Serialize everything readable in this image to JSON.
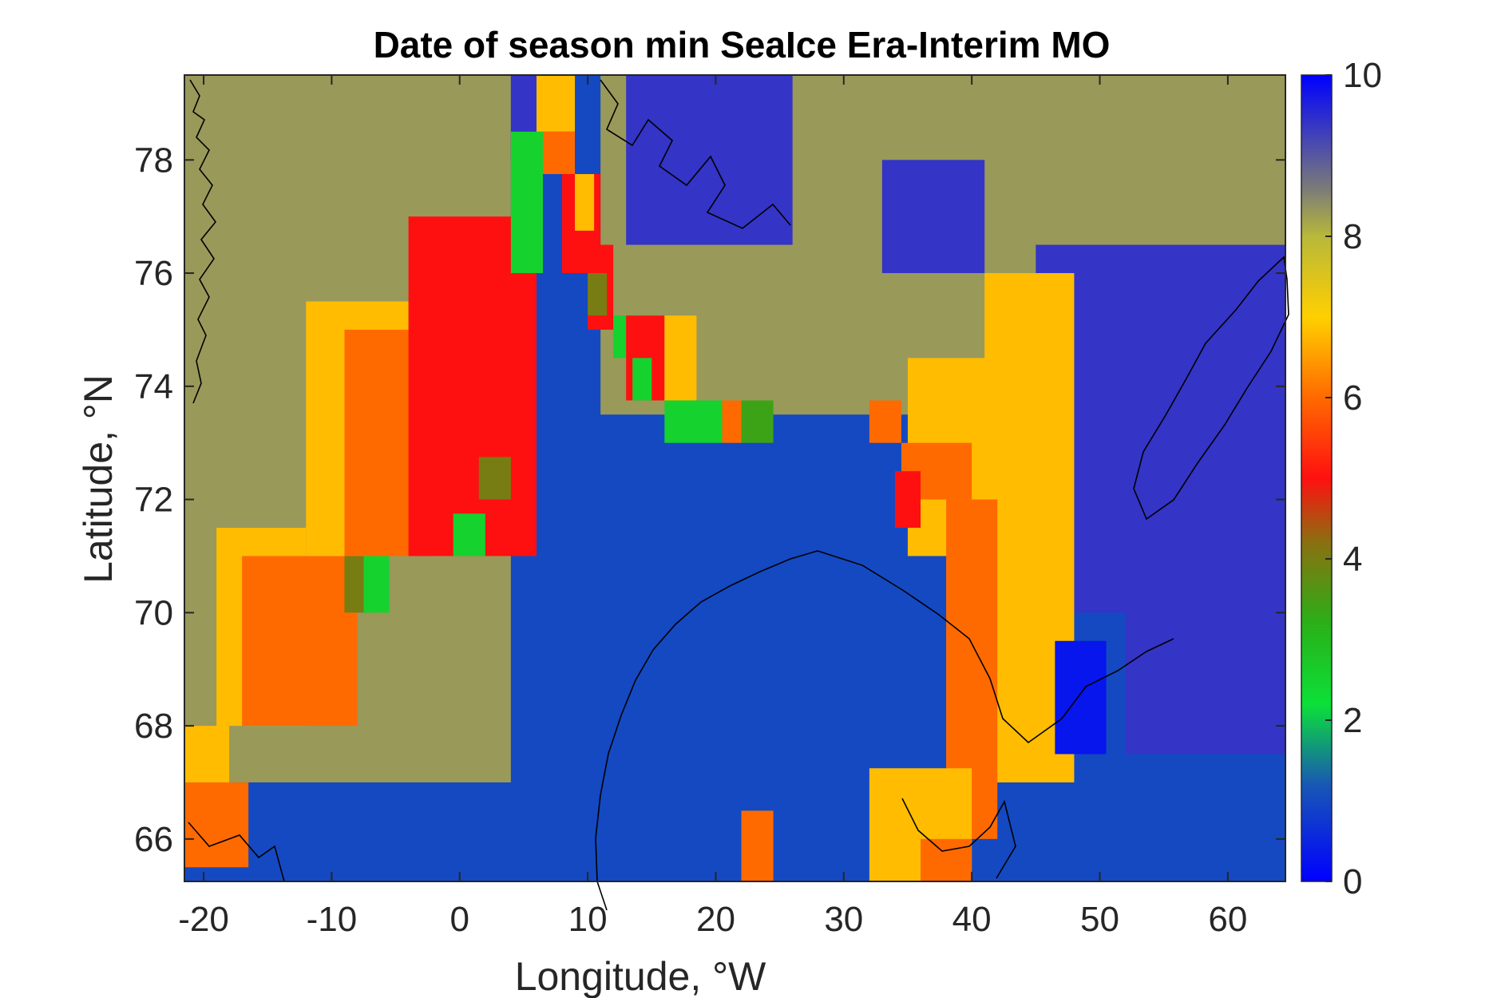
{
  "chart_data": {
    "type": "heatmap",
    "title": "Date of season min SeaIce Era-Interim MO",
    "xlabel": "Longitude, °W",
    "ylabel": "Latitude, °N",
    "xlim": [
      -21.5,
      64.5
    ],
    "ylim": [
      65.25,
      79.5
    ],
    "x_ticks": [
      -20,
      -10,
      0,
      10,
      20,
      30,
      40,
      50,
      60
    ],
    "x_tick_labels": [
      "-20",
      "-10",
      "0",
      "10",
      "20",
      "30",
      "40",
      "50",
      "60"
    ],
    "y_ticks": [
      66,
      68,
      70,
      72,
      74,
      76,
      78
    ],
    "y_tick_labels": [
      "66",
      "68",
      "70",
      "72",
      "74",
      "76",
      "78"
    ],
    "colorbar": {
      "range": [
        0,
        10
      ],
      "ticks": [
        0,
        2,
        4,
        6,
        8,
        10
      ],
      "tick_labels": [
        "0",
        "2",
        "4",
        "6",
        "8",
        "10"
      ],
      "colormap": "jet-like"
    },
    "colormap": {
      "values": [
        0,
        1.2,
        2.2,
        3.2,
        4.2,
        5,
        6,
        7,
        8,
        8.6,
        10
      ],
      "colors": [
        "#0000ff",
        "#1858b4",
        "#0ce038",
        "#2ab018",
        "#8a7010",
        "#ff1010",
        "#ff6a00",
        "#ffd000",
        "#b8b83a",
        "#7a7a7a",
        "#0000ff"
      ]
    },
    "grid_resolution": "1.5° lon × 0.75° lat",
    "regions": [
      {
        "value": 1.0,
        "lon": [
          -21.5,
          64.5
        ],
        "lat": [
          65.25,
          79.5
        ]
      },
      {
        "value": 8.3,
        "lon": [
          -21.5,
          4
        ],
        "lat": [
          67.0,
          79.5
        ]
      },
      {
        "value": 8.3,
        "lon": [
          11,
          64.5
        ],
        "lat": [
          73.5,
          79.5
        ]
      },
      {
        "value": 9.4,
        "lon": [
          4,
          6.5
        ],
        "lat": [
          78.0,
          79.5
        ]
      },
      {
        "value": 9.4,
        "lon": [
          13,
          26
        ],
        "lat": [
          76.5,
          79.5
        ]
      },
      {
        "value": 9.4,
        "lon": [
          33,
          41
        ],
        "lat": [
          76.0,
          78.0
        ]
      },
      {
        "value": 9.4,
        "lon": [
          45,
          64.5
        ],
        "lat": [
          70.0,
          76.5
        ]
      },
      {
        "value": 9.4,
        "lon": [
          52,
          64.5
        ],
        "lat": [
          67.5,
          72.0
        ]
      },
      {
        "value": 6.8,
        "lon": [
          -21.5,
          -18
        ],
        "lat": [
          67.0,
          68.0
        ]
      },
      {
        "value": 6.0,
        "lon": [
          -21.5,
          -16.5
        ],
        "lat": [
          65.5,
          67.0
        ]
      },
      {
        "value": 6.8,
        "lon": [
          -19,
          -12
        ],
        "lat": [
          68.0,
          71.5
        ]
      },
      {
        "value": 6.0,
        "lon": [
          -17,
          -8
        ],
        "lat": [
          68.0,
          71.0
        ]
      },
      {
        "value": 6.8,
        "lon": [
          -12,
          -4
        ],
        "lat": [
          71.0,
          75.5
        ]
      },
      {
        "value": 6.0,
        "lon": [
          -9,
          -2
        ],
        "lat": [
          71.0,
          75.0
        ]
      },
      {
        "value": 5.0,
        "lon": [
          -4,
          6
        ],
        "lat": [
          71.0,
          77.0
        ]
      },
      {
        "value": 4.0,
        "lon": [
          -9,
          -7
        ],
        "lat": [
          70.0,
          71.0
        ]
      },
      {
        "value": 2.5,
        "lon": [
          -7.5,
          -5.5
        ],
        "lat": [
          70.0,
          71.0
        ]
      },
      {
        "value": 2.5,
        "lon": [
          -0.5,
          2
        ],
        "lat": [
          71.0,
          71.75
        ]
      },
      {
        "value": 4.0,
        "lon": [
          1.5,
          4
        ],
        "lat": [
          72.0,
          72.75
        ]
      },
      {
        "value": 2.5,
        "lon": [
          4,
          6.5
        ],
        "lat": [
          76.0,
          78.5
        ]
      },
      {
        "value": 6.8,
        "lon": [
          6,
          9
        ],
        "lat": [
          78.5,
          79.5
        ]
      },
      {
        "value": 6.0,
        "lon": [
          6.5,
          9
        ],
        "lat": [
          77.75,
          78.5
        ]
      },
      {
        "value": 5.0,
        "lon": [
          8,
          11
        ],
        "lat": [
          76.0,
          77.75
        ]
      },
      {
        "value": 6.8,
        "lon": [
          9,
          10.5
        ],
        "lat": [
          76.75,
          77.75
        ]
      },
      {
        "value": 5.0,
        "lon": [
          10,
          12
        ],
        "lat": [
          75.0,
          76.5
        ]
      },
      {
        "value": 4.0,
        "lon": [
          10,
          11.5
        ],
        "lat": [
          75.25,
          76.0
        ]
      },
      {
        "value": 2.5,
        "lon": [
          12,
          13.5
        ],
        "lat": [
          74.5,
          75.25
        ]
      },
      {
        "value": 5.0,
        "lon": [
          13,
          16
        ],
        "lat": [
          73.75,
          75.25
        ]
      },
      {
        "value": 2.5,
        "lon": [
          13.5,
          15
        ],
        "lat": [
          73.75,
          74.5
        ]
      },
      {
        "value": 6.8,
        "lon": [
          16,
          18.5
        ],
        "lat": [
          73.75,
          75.25
        ]
      },
      {
        "value": 2.5,
        "lon": [
          16,
          20.5
        ],
        "lat": [
          73.0,
          73.75
        ]
      },
      {
        "value": 6.0,
        "lon": [
          20.5,
          22
        ],
        "lat": [
          73.0,
          73.75
        ]
      },
      {
        "value": 3.4,
        "lon": [
          22,
          24.5
        ],
        "lat": [
          73.0,
          73.75
        ]
      },
      {
        "value": 6.8,
        "lon": [
          35,
          46
        ],
        "lat": [
          71.0,
          74.5
        ]
      },
      {
        "value": 6.8,
        "lon": [
          41,
          48
        ],
        "lat": [
          67.0,
          76.0
        ]
      },
      {
        "value": 6.0,
        "lon": [
          32,
          34.5
        ],
        "lat": [
          73.0,
          73.75
        ]
      },
      {
        "value": 6.0,
        "lon": [
          34.5,
          40
        ],
        "lat": [
          72.0,
          73.0
        ]
      },
      {
        "value": 6.0,
        "lon": [
          38,
          42
        ],
        "lat": [
          66.0,
          72.0
        ]
      },
      {
        "value": 5.0,
        "lon": [
          34,
          36
        ],
        "lat": [
          71.5,
          72.5
        ]
      },
      {
        "value": 0.3,
        "lon": [
          46.5,
          50.5
        ],
        "lat": [
          67.5,
          69.5
        ]
      },
      {
        "value": 6.8,
        "lon": [
          32,
          40
        ],
        "lat": [
          65.25,
          67.25
        ]
      },
      {
        "value": 6.0,
        "lon": [
          36,
          40
        ],
        "lat": [
          65.25,
          66.0
        ]
      },
      {
        "value": 6.0,
        "lon": [
          22,
          24.5
        ],
        "lat": [
          65.25,
          66.5
        ]
      }
    ]
  }
}
